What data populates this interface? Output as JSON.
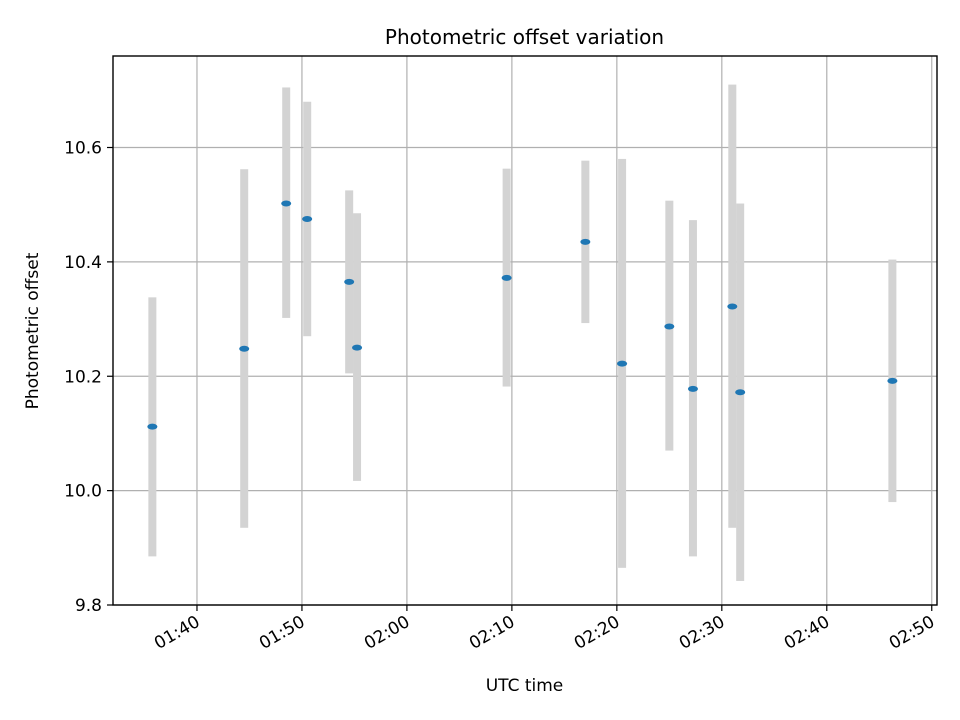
{
  "chart_data": {
    "type": "scatter",
    "title": "Photometric offset variation",
    "xlabel": "UTC time",
    "ylabel": "Photometric offset",
    "xlim": [
      "01:32:00",
      "02:50:30"
    ],
    "ylim": [
      9.8,
      10.76
    ],
    "x_ticks": [
      "01:40",
      "01:50",
      "02:00",
      "02:10",
      "02:20",
      "02:30",
      "02:40",
      "02:50"
    ],
    "y_ticks": [
      "9.8",
      "10.0",
      "10.2",
      "10.4",
      "10.6"
    ],
    "grid": true,
    "colors": {
      "point": "#1f77b4",
      "errorbar": "#d3d3d3",
      "grid": "#b0b0b0"
    },
    "points": [
      {
        "time": "01:35:45",
        "offset": 10.112,
        "low": 9.885,
        "high": 10.338
      },
      {
        "time": "01:44:30",
        "offset": 10.248,
        "low": 9.935,
        "high": 10.562
      },
      {
        "time": "01:48:30",
        "offset": 10.502,
        "low": 10.302,
        "high": 10.705
      },
      {
        "time": "01:50:30",
        "offset": 10.475,
        "low": 10.27,
        "high": 10.68
      },
      {
        "time": "01:54:30",
        "offset": 10.365,
        "low": 10.205,
        "high": 10.525
      },
      {
        "time": "01:55:15",
        "offset": 10.25,
        "low": 10.017,
        "high": 10.485
      },
      {
        "time": "02:09:30",
        "offset": 10.372,
        "low": 10.182,
        "high": 10.563
      },
      {
        "time": "02:17:00",
        "offset": 10.435,
        "low": 10.293,
        "high": 10.577
      },
      {
        "time": "02:20:30",
        "offset": 10.222,
        "low": 9.865,
        "high": 10.58
      },
      {
        "time": "02:25:00",
        "offset": 10.287,
        "low": 10.07,
        "high": 10.507
      },
      {
        "time": "02:27:15",
        "offset": 10.178,
        "low": 9.885,
        "high": 10.473
      },
      {
        "time": "02:31:00",
        "offset": 10.322,
        "low": 9.935,
        "high": 10.71
      },
      {
        "time": "02:31:45",
        "offset": 10.172,
        "low": 9.842,
        "high": 10.502
      },
      {
        "time": "02:46:15",
        "offset": 10.192,
        "low": 9.98,
        "high": 10.404
      }
    ]
  }
}
